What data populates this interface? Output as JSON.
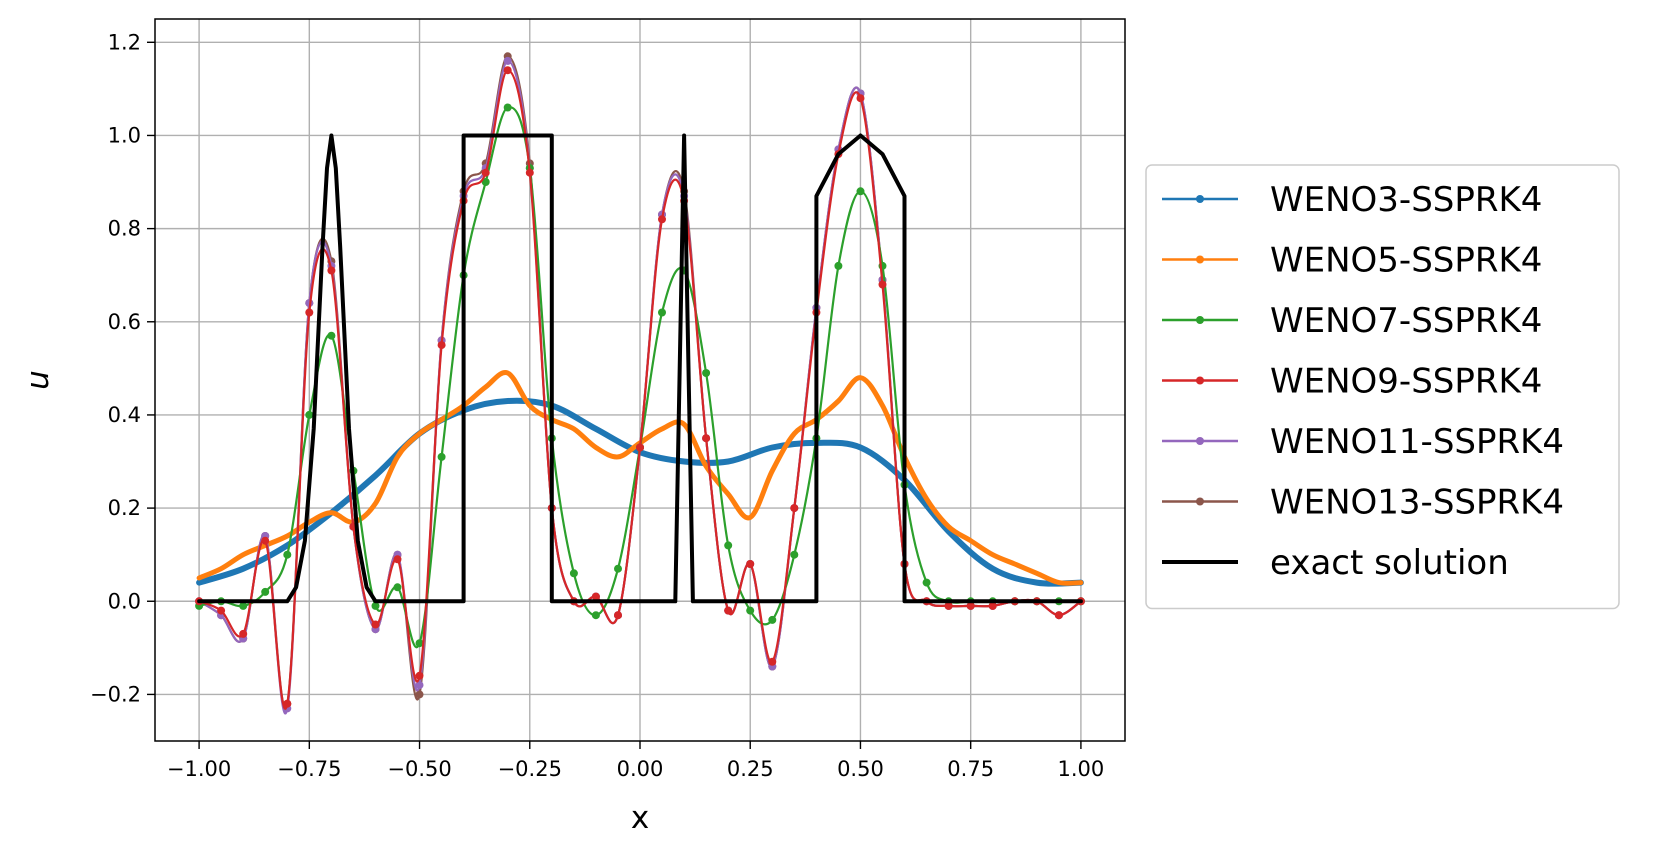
{
  "chart_data": {
    "type": "line",
    "title": "",
    "xlabel": "x",
    "ylabel": "u",
    "xlim": [
      -1.1,
      1.1
    ],
    "ylim": [
      -0.3,
      1.25
    ],
    "grid": true,
    "legend_position": "outside-right",
    "x_ticks": [
      -1.0,
      -0.75,
      -0.5,
      -0.25,
      0.0,
      0.25,
      0.5,
      0.75,
      1.0
    ],
    "x_tick_labels": [
      "−1.00",
      "−0.75",
      "−0.50",
      "−0.25",
      "0.00",
      "0.25",
      "0.50",
      "0.75",
      "1.00"
    ],
    "y_ticks": [
      -0.2,
      0.0,
      0.2,
      0.4,
      0.6,
      0.8,
      1.0,
      1.2
    ],
    "y_tick_labels": [
      "−0.2",
      "0.0",
      "0.2",
      "0.4",
      "0.6",
      "0.8",
      "1.0",
      "1.2"
    ],
    "series": [
      {
        "name": "WENO3-SSPRK4",
        "color": "#1f77b4",
        "marker": "dot",
        "x": [
          -1.0,
          -0.9,
          -0.8,
          -0.7,
          -0.6,
          -0.5,
          -0.4,
          -0.3,
          -0.2,
          -0.1,
          0.0,
          0.1,
          0.2,
          0.3,
          0.4,
          0.5,
          0.6,
          0.7,
          0.8,
          0.9,
          1.0
        ],
        "y": [
          0.04,
          0.07,
          0.12,
          0.19,
          0.27,
          0.36,
          0.41,
          0.43,
          0.42,
          0.37,
          0.32,
          0.3,
          0.3,
          0.33,
          0.34,
          0.33,
          0.26,
          0.15,
          0.07,
          0.04,
          0.04
        ]
      },
      {
        "name": "WENO5-SSPRK4",
        "color": "#ff7f0e",
        "marker": "dot",
        "x": [
          -1.0,
          -0.95,
          -0.9,
          -0.85,
          -0.8,
          -0.75,
          -0.7,
          -0.65,
          -0.6,
          -0.55,
          -0.5,
          -0.45,
          -0.4,
          -0.35,
          -0.3,
          -0.25,
          -0.2,
          -0.15,
          -0.1,
          -0.05,
          0.0,
          0.05,
          0.1,
          0.15,
          0.2,
          0.25,
          0.3,
          0.35,
          0.4,
          0.45,
          0.5,
          0.55,
          0.6,
          0.65,
          0.7,
          0.75,
          0.8,
          0.85,
          0.9,
          0.95,
          1.0
        ],
        "y": [
          0.05,
          0.07,
          0.1,
          0.12,
          0.14,
          0.17,
          0.19,
          0.17,
          0.21,
          0.31,
          0.36,
          0.39,
          0.42,
          0.46,
          0.49,
          0.42,
          0.39,
          0.37,
          0.33,
          0.31,
          0.34,
          0.37,
          0.38,
          0.29,
          0.23,
          0.18,
          0.28,
          0.36,
          0.39,
          0.43,
          0.48,
          0.42,
          0.31,
          0.22,
          0.16,
          0.13,
          0.1,
          0.08,
          0.06,
          0.04,
          0.04
        ]
      },
      {
        "name": "WENO7-SSPRK4",
        "color": "#2ca02c",
        "marker": "dot",
        "x": [
          -1.0,
          -0.95,
          -0.9,
          -0.85,
          -0.8,
          -0.75,
          -0.7,
          -0.65,
          -0.6,
          -0.55,
          -0.5,
          -0.45,
          -0.4,
          -0.35,
          -0.3,
          -0.25,
          -0.2,
          -0.15,
          -0.1,
          -0.05,
          0.0,
          0.05,
          0.1,
          0.15,
          0.2,
          0.25,
          0.3,
          0.35,
          0.4,
          0.45,
          0.5,
          0.55,
          0.6,
          0.65,
          0.7,
          0.75,
          0.8,
          0.85,
          0.9,
          0.95,
          1.0
        ],
        "y": [
          -0.01,
          0.0,
          -0.01,
          0.02,
          0.1,
          0.4,
          0.57,
          0.28,
          -0.01,
          0.03,
          -0.09,
          0.31,
          0.7,
          0.9,
          1.06,
          0.93,
          0.35,
          0.06,
          -0.03,
          0.07,
          0.33,
          0.62,
          0.71,
          0.49,
          0.12,
          -0.02,
          -0.04,
          0.1,
          0.35,
          0.72,
          0.88,
          0.72,
          0.25,
          0.04,
          0.0,
          0.0,
          0.0,
          0.0,
          0.0,
          0.0,
          0.0
        ]
      },
      {
        "name": "WENO9-SSPRK4",
        "color": "#d62728",
        "marker": "dot",
        "x": [
          -1.0,
          -0.95,
          -0.9,
          -0.85,
          -0.8,
          -0.75,
          -0.7,
          -0.65,
          -0.6,
          -0.55,
          -0.5,
          -0.45,
          -0.4,
          -0.35,
          -0.3,
          -0.25,
          -0.2,
          -0.15,
          -0.1,
          -0.05,
          0.0,
          0.05,
          0.1,
          0.15,
          0.2,
          0.25,
          0.3,
          0.35,
          0.4,
          0.45,
          0.5,
          0.55,
          0.6,
          0.65,
          0.7,
          0.75,
          0.8,
          0.85,
          0.9,
          0.95,
          1.0
        ],
        "y": [
          0.0,
          -0.02,
          -0.07,
          0.13,
          -0.22,
          0.62,
          0.71,
          0.16,
          -0.05,
          0.09,
          -0.16,
          0.55,
          0.86,
          0.92,
          1.14,
          0.92,
          0.2,
          0.0,
          0.01,
          -0.03,
          0.33,
          0.82,
          0.86,
          0.35,
          -0.02,
          0.08,
          -0.13,
          0.2,
          0.62,
          0.96,
          1.08,
          0.68,
          0.08,
          0.0,
          -0.01,
          -0.01,
          -0.01,
          0.0,
          0.0,
          -0.03,
          0.0
        ]
      },
      {
        "name": "WENO11-SSPRK4",
        "color": "#9467bd",
        "marker": "dot",
        "x": [
          -1.0,
          -0.95,
          -0.9,
          -0.85,
          -0.8,
          -0.75,
          -0.7,
          -0.65,
          -0.6,
          -0.55,
          -0.5,
          -0.45,
          -0.4,
          -0.35,
          -0.3,
          -0.25,
          -0.2,
          -0.15,
          -0.1,
          -0.05,
          0.0,
          0.05,
          0.1,
          0.15,
          0.2,
          0.25,
          0.3,
          0.35,
          0.4,
          0.45,
          0.5,
          0.55,
          0.6,
          0.65,
          0.7,
          0.75,
          0.8,
          0.85,
          0.9,
          0.95,
          1.0
        ],
        "y": [
          0.0,
          -0.03,
          -0.08,
          0.14,
          -0.23,
          0.64,
          0.72,
          0.16,
          -0.06,
          0.1,
          -0.18,
          0.56,
          0.87,
          0.93,
          1.16,
          0.93,
          0.2,
          0.0,
          0.01,
          -0.03,
          0.33,
          0.83,
          0.87,
          0.35,
          -0.02,
          0.08,
          -0.14,
          0.2,
          0.63,
          0.97,
          1.09,
          0.69,
          0.08,
          0.0,
          -0.01,
          -0.01,
          -0.01,
          0.0,
          0.0,
          -0.03,
          0.0
        ]
      },
      {
        "name": "WENO13-SSPRK4",
        "color": "#8c564b",
        "marker": "dot",
        "x": [
          -1.0,
          -0.95,
          -0.9,
          -0.85,
          -0.8,
          -0.75,
          -0.7,
          -0.65,
          -0.6,
          -0.55,
          -0.5,
          -0.45,
          -0.4,
          -0.35,
          -0.3,
          -0.25,
          -0.2,
          -0.15,
          -0.1,
          -0.05,
          0.0,
          0.05,
          0.1,
          0.15,
          0.2,
          0.25,
          0.3,
          0.35,
          0.4,
          0.45,
          0.5,
          0.55,
          0.6,
          0.65,
          0.7,
          0.75,
          0.8,
          0.85,
          0.9,
          0.95,
          1.0
        ],
        "y": [
          0.0,
          -0.03,
          -0.08,
          0.14,
          -0.22,
          0.64,
          0.73,
          0.16,
          -0.06,
          0.1,
          -0.2,
          0.56,
          0.88,
          0.94,
          1.17,
          0.94,
          0.2,
          0.0,
          0.01,
          -0.03,
          0.33,
          0.83,
          0.88,
          0.35,
          -0.02,
          0.08,
          -0.14,
          0.2,
          0.63,
          0.97,
          1.09,
          0.69,
          0.08,
          0.0,
          -0.01,
          -0.01,
          -0.01,
          0.0,
          0.0,
          -0.03,
          0.0
        ]
      },
      {
        "name": "exact solution",
        "color": "#000000",
        "marker": "none",
        "x": [
          -1.0,
          -0.8,
          -0.78,
          -0.76,
          -0.74,
          -0.72,
          -0.71,
          -0.7,
          -0.69,
          -0.68,
          -0.66,
          -0.64,
          -0.62,
          -0.6,
          -0.4,
          -0.4,
          -0.2,
          -0.2,
          0.0,
          0.08,
          0.09,
          0.1,
          0.11,
          0.12,
          0.2,
          0.4,
          0.4,
          0.45,
          0.5,
          0.55,
          0.6,
          0.6,
          1.0
        ],
        "y": [
          0.0,
          0.0,
          0.03,
          0.13,
          0.37,
          0.76,
          0.93,
          1.0,
          0.93,
          0.76,
          0.37,
          0.13,
          0.03,
          0.0,
          0.0,
          1.0,
          1.0,
          0.0,
          0.0,
          0.0,
          0.5,
          1.0,
          0.5,
          0.0,
          0.0,
          0.0,
          0.87,
          0.96,
          1.0,
          0.96,
          0.87,
          0.0,
          0.0
        ]
      }
    ]
  }
}
